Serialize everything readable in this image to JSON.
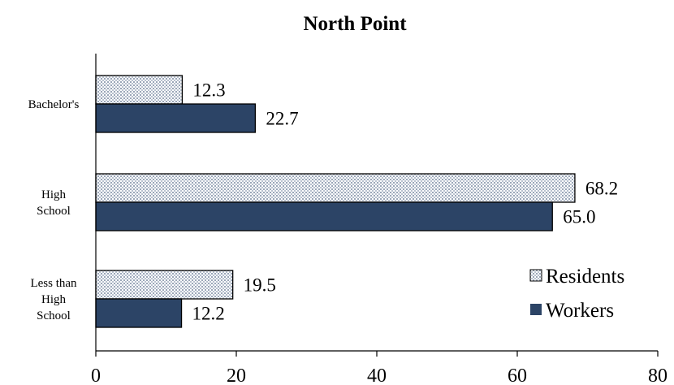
{
  "chart_data": {
    "type": "bar",
    "orientation": "horizontal",
    "title": "North Point",
    "categories": [
      [
        "Bachelor's"
      ],
      [
        "High",
        "School"
      ],
      [
        "Less than",
        "High",
        "School"
      ]
    ],
    "series": [
      {
        "name": "Residents",
        "values": [
          12.3,
          68.2,
          19.5
        ],
        "value_labels": [
          "12.3",
          "68.2",
          "19.5"
        ],
        "color": "#d9dee6",
        "pattern": "dotted"
      },
      {
        "name": "Workers",
        "values": [
          22.7,
          65.0,
          12.2
        ],
        "value_labels": [
          "22.7",
          "65.0",
          "12.2"
        ],
        "color": "#2c4466"
      }
    ],
    "xlim": [
      0,
      80
    ],
    "xticks": [
      "0",
      "20",
      "40",
      "60",
      "80"
    ],
    "grid": false,
    "legend_position": "bottom-right"
  }
}
